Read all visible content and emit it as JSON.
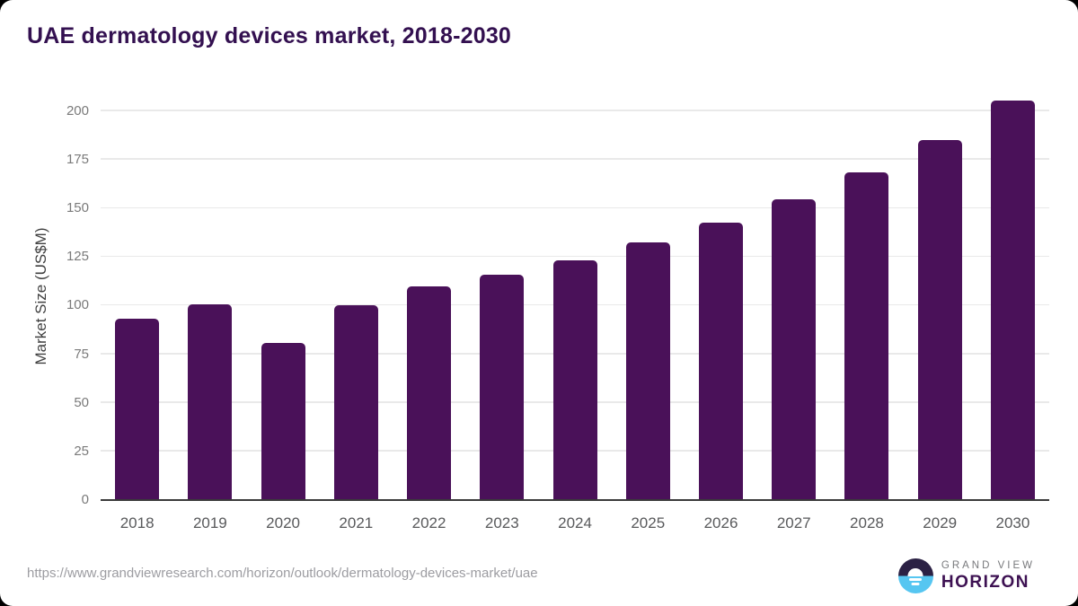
{
  "title": "UAE dermatology devices market, 2018-2030",
  "chart_data": {
    "type": "bar",
    "title": "UAE dermatology devices market, 2018-2030",
    "categories": [
      "2018",
      "2019",
      "2020",
      "2021",
      "2022",
      "2023",
      "2024",
      "2025",
      "2026",
      "2027",
      "2028",
      "2029",
      "2030"
    ],
    "values": [
      93.1,
      100.8,
      80.8,
      100.3,
      109.7,
      115.7,
      123.4,
      132.3,
      142.8,
      154.6,
      168.4,
      185.2,
      205.5
    ],
    "xlabel": "",
    "ylabel": "Market Size (US$M)",
    "ylim": [
      0,
      210
    ],
    "yticks": [
      0,
      25,
      50,
      75,
      100,
      125,
      150,
      175,
      200
    ],
    "grid": true,
    "legend_position": "none",
    "bar_color": "#4a1159"
  },
  "footer": {
    "source_url": "https://www.grandviewresearch.com/horizon/outlook/dermatology-devices-market/uae",
    "logo": {
      "top": "GRAND VIEW",
      "bottom": "HORIZON"
    }
  },
  "colors": {
    "bar": "#4a1159",
    "title_text": "#331050",
    "axis_line": "#3a3a3a",
    "gridline": "#e9e9e9",
    "tick_text": "#7a7a7a",
    "x_label_text": "#58595b",
    "url_text": "#9c9ca1",
    "logo_dark": "#2b2144",
    "logo_blue": "#56c6f1"
  }
}
